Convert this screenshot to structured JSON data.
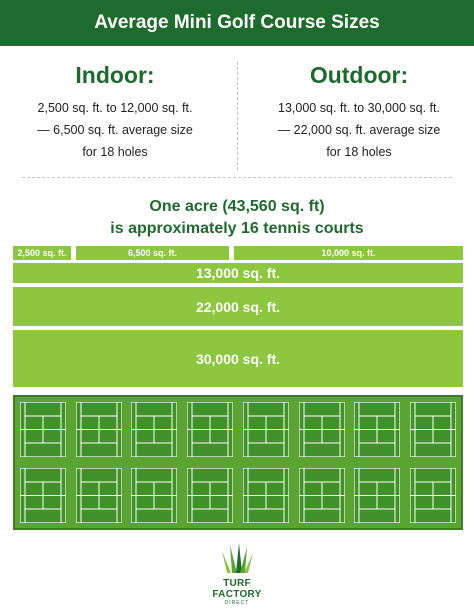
{
  "header": {
    "title": "Average Mini Golf Course Sizes"
  },
  "indoor": {
    "title": "Indoor:",
    "lines": [
      "2,500 sq. ft. to 12,000 sq. ft.",
      "— 6,500 sq. ft. average size",
      "for 18 holes"
    ]
  },
  "outdoor": {
    "title": "Outdoor:",
    "lines": [
      "13,000 sq. ft. to 30,000 sq. ft.",
      "— 22,000 sq. ft. average size",
      "for 18 holes"
    ]
  },
  "acre": {
    "line1": "One acre (43,560 sq. ft)",
    "line2": "is approximately 16 tennis courts"
  },
  "bars": {
    "b2500": "2,500 sq. ft.",
    "b6500": "6,500 sq. ft.",
    "b10000": "10,000 sq. ft.",
    "b13000": "13,000 sq. ft.",
    "b22000": "22,000 sq. ft.",
    "b30000": "30,000 sq. ft."
  },
  "tennis_courts": {
    "rows": 2,
    "per_row": 8
  },
  "logo": {
    "line1": "TURF FACTORY",
    "line2": "DIRECT"
  },
  "colors": {
    "dark_green": "#1e6b2e",
    "light_green": "#8dc63f",
    "court_green": "#5aa532"
  }
}
